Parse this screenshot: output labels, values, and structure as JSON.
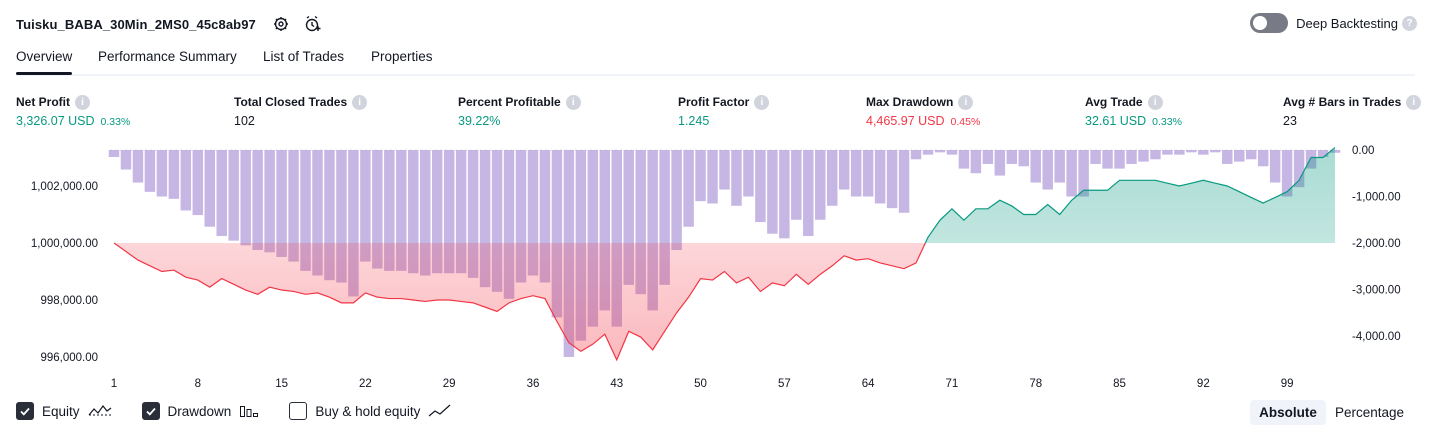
{
  "header": {
    "title": "Tuisku_BABA_30Min_2MS0_45c8ab97",
    "deep_backtesting_label": "Deep Backtesting",
    "deep_backtesting_enabled": false
  },
  "tabs": [
    {
      "label": "Overview",
      "active": true
    },
    {
      "label": "Performance Summary",
      "active": false
    },
    {
      "label": "List of Trades",
      "active": false
    },
    {
      "label": "Properties",
      "active": false
    }
  ],
  "metrics": [
    {
      "label": "Net Profit",
      "value": "3,326.07 USD",
      "pct": "0.33%",
      "tone": "green"
    },
    {
      "label": "Total Closed Trades",
      "value": "102",
      "pct": "",
      "tone": "neutral"
    },
    {
      "label": "Percent Profitable",
      "value": "39.22%",
      "pct": "",
      "tone": "green"
    },
    {
      "label": "Profit Factor",
      "value": "1.245",
      "pct": "",
      "tone": "green"
    },
    {
      "label": "Max Drawdown",
      "value": "4,465.97 USD",
      "pct": "0.45%",
      "tone": "red"
    },
    {
      "label": "Avg Trade",
      "value": "32.61 USD",
      "pct": "0.33%",
      "tone": "green"
    },
    {
      "label": "Avg # Bars in Trades",
      "value": "23",
      "pct": "",
      "tone": "neutral"
    }
  ],
  "legend": {
    "equity": {
      "label": "Equity",
      "checked": true
    },
    "drawdown": {
      "label": "Drawdown",
      "checked": true
    },
    "buyhold": {
      "label": "Buy & hold equity",
      "checked": false
    }
  },
  "modes": {
    "absolute": "Absolute",
    "percentage": "Percentage",
    "active": "absolute"
  },
  "colors": {
    "equity_up": "#089981",
    "equity_down": "#f23645",
    "drawdown": "#b39ddb",
    "accent": "#2962ff"
  },
  "chart_data": {
    "type": "area",
    "x_ticks": [
      "1",
      "8",
      "15",
      "22",
      "29",
      "36",
      "43",
      "50",
      "57",
      "64",
      "71",
      "78",
      "85",
      "92",
      "99"
    ],
    "left_axis": {
      "ticks": [
        "996,000.00",
        "998,000.00",
        "1,000,000.00",
        "1,002,000.00"
      ],
      "range": [
        995500,
        1003500
      ]
    },
    "right_axis": {
      "ticks": [
        "0.00",
        "-1,000.00",
        "-2,000.00",
        "-3,000.00",
        "-4,000.00"
      ],
      "range": [
        -4500,
        0
      ]
    },
    "baseline": 1000000,
    "x": [
      1,
      2,
      3,
      4,
      5,
      6,
      7,
      8,
      9,
      10,
      11,
      12,
      13,
      14,
      15,
      16,
      17,
      18,
      19,
      20,
      21,
      22,
      23,
      24,
      25,
      26,
      27,
      28,
      29,
      30,
      31,
      32,
      33,
      34,
      35,
      36,
      37,
      38,
      39,
      40,
      41,
      42,
      43,
      44,
      45,
      46,
      47,
      48,
      49,
      50,
      51,
      52,
      53,
      54,
      55,
      56,
      57,
      58,
      59,
      60,
      61,
      62,
      63,
      64,
      65,
      66,
      67,
      68,
      69,
      70,
      71,
      72,
      73,
      74,
      75,
      76,
      77,
      78,
      79,
      80,
      81,
      82,
      83,
      84,
      85,
      86,
      87,
      88,
      89,
      90,
      91,
      92,
      93,
      94,
      95,
      96,
      97,
      98,
      99,
      100,
      101,
      102,
      103
    ],
    "series": [
      {
        "name": "Equity",
        "values": [
          1000000,
          999700,
          999400,
          999200,
          999000,
          999050,
          998800,
          998700,
          998450,
          998750,
          998550,
          998350,
          998200,
          998450,
          998350,
          998300,
          998200,
          998250,
          998100,
          997900,
          997900,
          998250,
          998100,
          998050,
          998050,
          998000,
          997950,
          998000,
          998000,
          997950,
          997900,
          997750,
          997600,
          997900,
          998050,
          998150,
          998050,
          997250,
          996500,
          996200,
          996450,
          996800,
          995900,
          996900,
          996700,
          996250,
          996900,
          997550,
          998100,
          998750,
          998700,
          999000,
          998600,
          998800,
          998300,
          998600,
          998500,
          998900,
          998550,
          998900,
          999200,
          999550,
          999400,
          999450,
          999300,
          999200,
          999100,
          999300,
          1000200,
          1000800,
          1001200,
          1000800,
          1001200,
          1001200,
          1001500,
          1001300,
          1001000,
          1001000,
          1001350,
          1001000,
          1001500,
          1001850,
          1001850,
          1001850,
          1002200,
          1002200,
          1002200,
          1002200,
          1002100,
          1002000,
          1002100,
          1002200,
          1002100,
          1002000,
          1001800,
          1001600,
          1001400,
          1001600,
          1001800,
          1002200,
          1003000,
          1003000,
          1003350
        ]
      },
      {
        "name": "Drawdown",
        "values": [
          -150,
          -420,
          -700,
          -900,
          -1000,
          -1050,
          -1300,
          -1400,
          -1650,
          -1850,
          -1950,
          -2050,
          -2150,
          -2200,
          -2300,
          -2400,
          -2600,
          -2700,
          -2800,
          -2850,
          -3150,
          -2400,
          -2550,
          -2600,
          -2600,
          -2650,
          -2700,
          -2650,
          -2650,
          -2650,
          -2750,
          -2950,
          -3050,
          -3200,
          -2850,
          -2700,
          -2850,
          -3600,
          -4450,
          -4100,
          -3800,
          -3450,
          -3800,
          -2900,
          -3100,
          -3450,
          -2900,
          -2150,
          -1650,
          -1100,
          -1150,
          -850,
          -1200,
          -1000,
          -1550,
          -1800,
          -1900,
          -1500,
          -1850,
          -1500,
          -1200,
          -850,
          -1000,
          -1000,
          -1150,
          -1250,
          -1350,
          -200,
          -100,
          -50,
          -100,
          -400,
          -500,
          -300,
          -550,
          -300,
          -350,
          -700,
          -850,
          -700,
          -1000,
          -1000,
          -300,
          -400,
          -400,
          -300,
          -250,
          -200,
          -100,
          -100,
          -50,
          -100,
          -50,
          -300,
          -250,
          -200,
          -350,
          -700,
          -1000,
          -800,
          -400,
          -150,
          -60
        ]
      }
    ]
  }
}
